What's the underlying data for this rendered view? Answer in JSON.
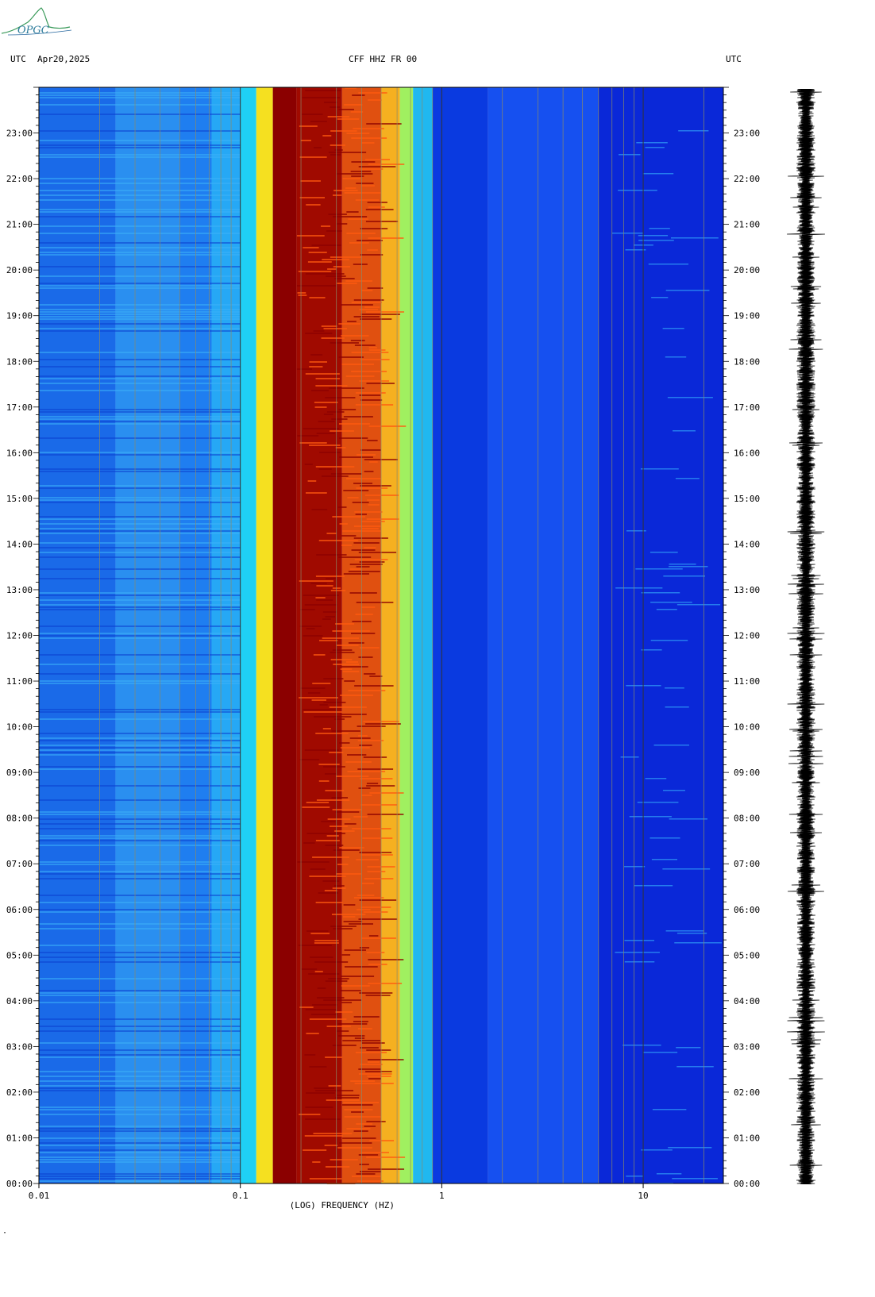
{
  "header": {
    "utc_left": "UTC",
    "date": "Apr20,2025",
    "station": "CFF HHZ FR 00",
    "utc_right": "UTC"
  },
  "logo": {
    "text": "OPGC",
    "color": "#2a7a9a"
  },
  "footer_mark": "·",
  "chart_data": {
    "type": "heatmap",
    "title": "CFF HHZ FR 00",
    "xlabel": "(LOG) FREQUENCY (HZ)",
    "ylabel": "",
    "xscale": "log",
    "xlim": [
      0.01,
      25
    ],
    "ylim_hours": [
      0,
      24
    ],
    "x_tick_labels": [
      {
        "value": 0.01,
        "label": "0.01"
      },
      {
        "value": 0.1,
        "label": "0.1"
      },
      {
        "value": 1,
        "label": "1"
      },
      {
        "value": 10,
        "label": "10"
      }
    ],
    "y_tick_labels": [
      "00:00",
      "01:00",
      "02:00",
      "03:00",
      "04:00",
      "05:00",
      "06:00",
      "07:00",
      "08:00",
      "09:00",
      "10:00",
      "11:00",
      "12:00",
      "13:00",
      "14:00",
      "15:00",
      "16:00",
      "17:00",
      "18:00",
      "19:00",
      "20:00",
      "21:00",
      "22:00",
      "23:00"
    ],
    "colormap": [
      "#00008f",
      "#0040ff",
      "#00c0ff",
      "#40ffbf",
      "#ffff00",
      "#ff8000",
      "#ff0000",
      "#8b0000"
    ],
    "spectral_bands": [
      {
        "from": 0.01,
        "to": 0.024,
        "color": "#1a6ae8"
      },
      {
        "from": 0.024,
        "to": 0.05,
        "color": "#2a8ff0"
      },
      {
        "from": 0.05,
        "to": 0.072,
        "color": "#1f7ef0"
      },
      {
        "from": 0.072,
        "to": 0.1,
        "color": "#26a8f5"
      },
      {
        "from": 0.1,
        "to": 0.12,
        "color": "#1fd0f5"
      },
      {
        "from": 0.12,
        "to": 0.145,
        "color": "#f5e020"
      },
      {
        "from": 0.145,
        "to": 0.19,
        "color": "#8b0000"
      },
      {
        "from": 0.19,
        "to": 0.32,
        "color": "#a00a00"
      },
      {
        "from": 0.32,
        "to": 0.5,
        "color": "#e05010"
      },
      {
        "from": 0.5,
        "to": 0.62,
        "color": "#f5b020"
      },
      {
        "from": 0.62,
        "to": 0.72,
        "color": "#a0f060"
      },
      {
        "from": 0.72,
        "to": 0.9,
        "color": "#20b8f0"
      },
      {
        "from": 0.9,
        "to": 1.7,
        "color": "#0a3ae0"
      },
      {
        "from": 1.7,
        "to": 6,
        "color": "#1650f0"
      },
      {
        "from": 6,
        "to": 25,
        "color": "#0a28d8"
      }
    ],
    "grid": true
  }
}
